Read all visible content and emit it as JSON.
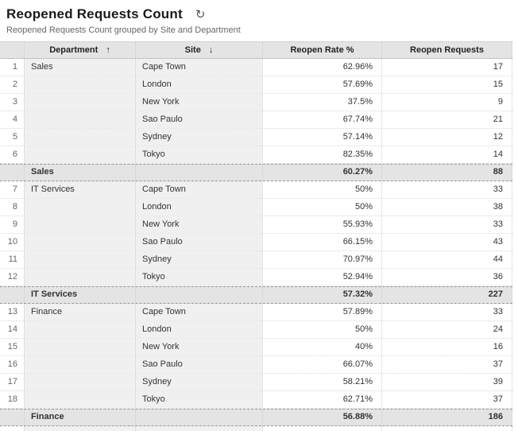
{
  "page": {
    "title": "Reopened Requests Count",
    "subtitle": "Reopened Requests Count grouped by Site and Department"
  },
  "icons": {
    "refresh": "↻",
    "sort_asc": "↑",
    "sort_desc": "↓"
  },
  "table": {
    "headers": [
      {
        "label": "Department",
        "sort_arrow": "↑"
      },
      {
        "label": "Site",
        "sort_arrow": "↓"
      },
      {
        "label": "Reopen Rate %",
        "sort_arrow": ""
      },
      {
        "label": "Reopen Requests",
        "sort_arrow": ""
      }
    ],
    "rows": [
      {
        "type": "data",
        "num": "1",
        "department": "Sales",
        "site": "Cape Town",
        "rate": "62.96%",
        "requests": "17"
      },
      {
        "type": "data",
        "num": "2",
        "department": "",
        "site": "London",
        "rate": "57.69%",
        "requests": "15"
      },
      {
        "type": "data",
        "num": "3",
        "department": "",
        "site": "New York",
        "rate": "37.5%",
        "requests": "9"
      },
      {
        "type": "data",
        "num": "4",
        "department": "",
        "site": "Sao Paulo",
        "rate": "67.74%",
        "requests": "21"
      },
      {
        "type": "data",
        "num": "5",
        "department": "",
        "site": "Sydney",
        "rate": "57.14%",
        "requests": "12"
      },
      {
        "type": "data",
        "num": "6",
        "department": "",
        "site": "Tokyo",
        "rate": "82.35%",
        "requests": "14"
      },
      {
        "type": "summary",
        "num": "",
        "department": "Sales",
        "site": "",
        "rate": "60.27%",
        "requests": "88"
      },
      {
        "type": "data",
        "num": "7",
        "department": "IT Services",
        "site": "Cape Town",
        "rate": "50%",
        "requests": "33"
      },
      {
        "type": "data",
        "num": "8",
        "department": "",
        "site": "London",
        "rate": "50%",
        "requests": "38"
      },
      {
        "type": "data",
        "num": "9",
        "department": "",
        "site": "New York",
        "rate": "55.93%",
        "requests": "33"
      },
      {
        "type": "data",
        "num": "10",
        "department": "",
        "site": "Sao Paulo",
        "rate": "66.15%",
        "requests": "43"
      },
      {
        "type": "data",
        "num": "11",
        "department": "",
        "site": "Sydney",
        "rate": "70.97%",
        "requests": "44"
      },
      {
        "type": "data",
        "num": "12",
        "department": "",
        "site": "Tokyo",
        "rate": "52.94%",
        "requests": "36"
      },
      {
        "type": "summary",
        "num": "",
        "department": "IT Services",
        "site": "",
        "rate": "57.32%",
        "requests": "227"
      },
      {
        "type": "data",
        "num": "13",
        "department": "Finance",
        "site": "Cape Town",
        "rate": "57.89%",
        "requests": "33"
      },
      {
        "type": "data",
        "num": "14",
        "department": "",
        "site": "London",
        "rate": "50%",
        "requests": "24"
      },
      {
        "type": "data",
        "num": "15",
        "department": "",
        "site": "New York",
        "rate": "40%",
        "requests": "16"
      },
      {
        "type": "data",
        "num": "16",
        "department": "",
        "site": "Sao Paulo",
        "rate": "66.07%",
        "requests": "37"
      },
      {
        "type": "data",
        "num": "17",
        "department": "",
        "site": "Sydney",
        "rate": "58.21%",
        "requests": "39"
      },
      {
        "type": "data",
        "num": "18",
        "department": "",
        "site": "Tokyo",
        "rate": "62.71%",
        "requests": "37"
      },
      {
        "type": "summary",
        "num": "",
        "department": "Finance",
        "site": "",
        "rate": "56.88%",
        "requests": "186"
      }
    ]
  }
}
